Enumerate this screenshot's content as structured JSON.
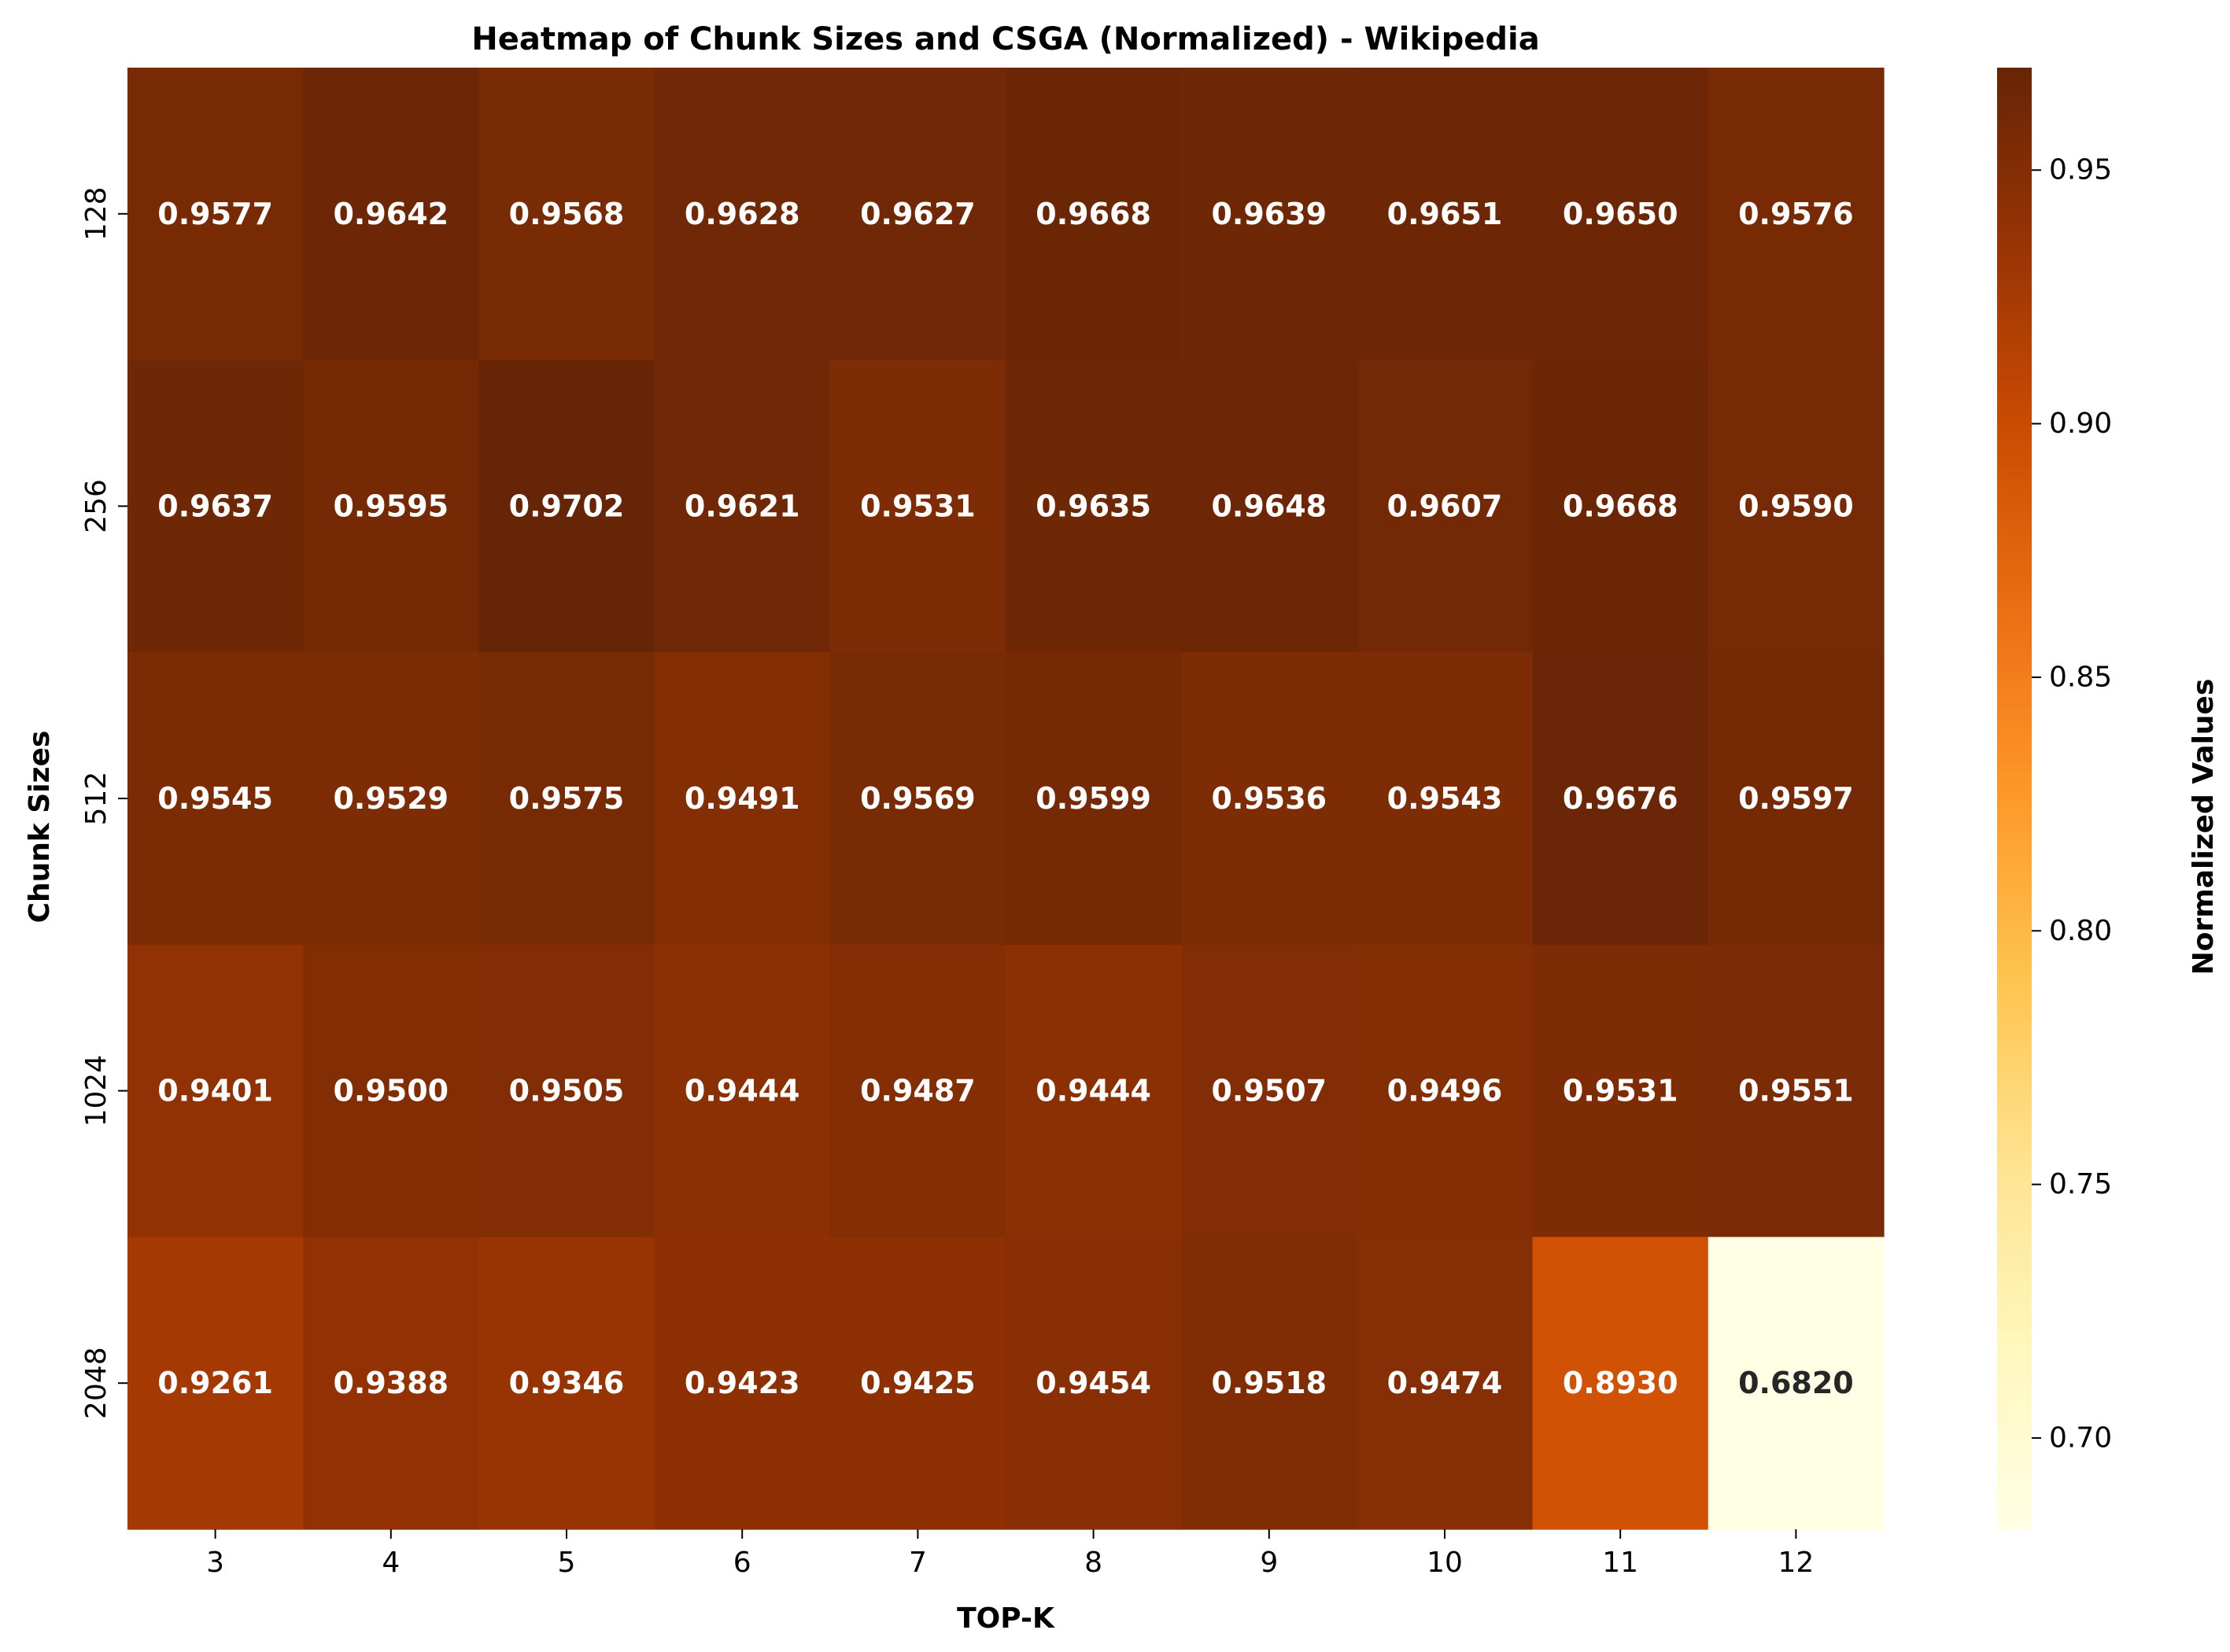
{
  "chart_data": {
    "type": "heatmap",
    "title": "Heatmap of Chunk Sizes and CSGA (Normalized) - Wikipedia",
    "xlabel": "TOP-K",
    "ylabel": "Chunk Sizes",
    "x_categories": [
      "3",
      "4",
      "5",
      "6",
      "7",
      "8",
      "9",
      "10",
      "11",
      "12"
    ],
    "y_categories": [
      "128",
      "256",
      "512",
      "1024",
      "2048"
    ],
    "values": [
      [
        0.9577,
        0.9642,
        0.9568,
        0.9628,
        0.9627,
        0.9668,
        0.9639,
        0.9651,
        0.965,
        0.9576
      ],
      [
        0.9637,
        0.9595,
        0.9702,
        0.9621,
        0.9531,
        0.9635,
        0.9648,
        0.9607,
        0.9668,
        0.959
      ],
      [
        0.9545,
        0.9529,
        0.9575,
        0.9491,
        0.9569,
        0.9599,
        0.9536,
        0.9543,
        0.9676,
        0.9597
      ],
      [
        0.9401,
        0.95,
        0.9505,
        0.9444,
        0.9487,
        0.9444,
        0.9507,
        0.9496,
        0.9531,
        0.9551
      ],
      [
        0.9261,
        0.9388,
        0.9346,
        0.9423,
        0.9425,
        0.9454,
        0.9518,
        0.9474,
        0.893,
        0.682
      ]
    ],
    "value_labels": [
      [
        "0.9577",
        "0.9642",
        "0.9568",
        "0.9628",
        "0.9627",
        "0.9668",
        "0.9639",
        "0.9651",
        "0.9650",
        "0.9576"
      ],
      [
        "0.9637",
        "0.9595",
        "0.9702",
        "0.9621",
        "0.9531",
        "0.9635",
        "0.9648",
        "0.9607",
        "0.9668",
        "0.9590"
      ],
      [
        "0.9545",
        "0.9529",
        "0.9575",
        "0.9491",
        "0.9569",
        "0.9599",
        "0.9536",
        "0.9543",
        "0.9676",
        "0.9597"
      ],
      [
        "0.9401",
        "0.9500",
        "0.9505",
        "0.9444",
        "0.9487",
        "0.9444",
        "0.9507",
        "0.9496",
        "0.9531",
        "0.9551"
      ],
      [
        "0.9261",
        "0.9388",
        "0.9346",
        "0.9423",
        "0.9425",
        "0.9454",
        "0.9518",
        "0.9474",
        "0.8930",
        "0.6820"
      ]
    ],
    "colorbar": {
      "label": "Normalized Values",
      "vmin": 0.682,
      "vmax": 0.9702,
      "ticks": [
        0.7,
        0.75,
        0.8,
        0.85,
        0.9,
        0.95
      ],
      "tick_labels": [
        "0.70",
        "0.75",
        "0.80",
        "0.85",
        "0.90",
        "0.95"
      ],
      "colormap": "YlOrBr",
      "colormap_stops": [
        "#ffffe5",
        "#fff7bc",
        "#fee391",
        "#fec44f",
        "#fe9929",
        "#ec7014",
        "#cc4c02",
        "#993404",
        "#662506"
      ]
    },
    "text_colors": {
      "light": "#ffffff",
      "dark": "#262626"
    }
  }
}
